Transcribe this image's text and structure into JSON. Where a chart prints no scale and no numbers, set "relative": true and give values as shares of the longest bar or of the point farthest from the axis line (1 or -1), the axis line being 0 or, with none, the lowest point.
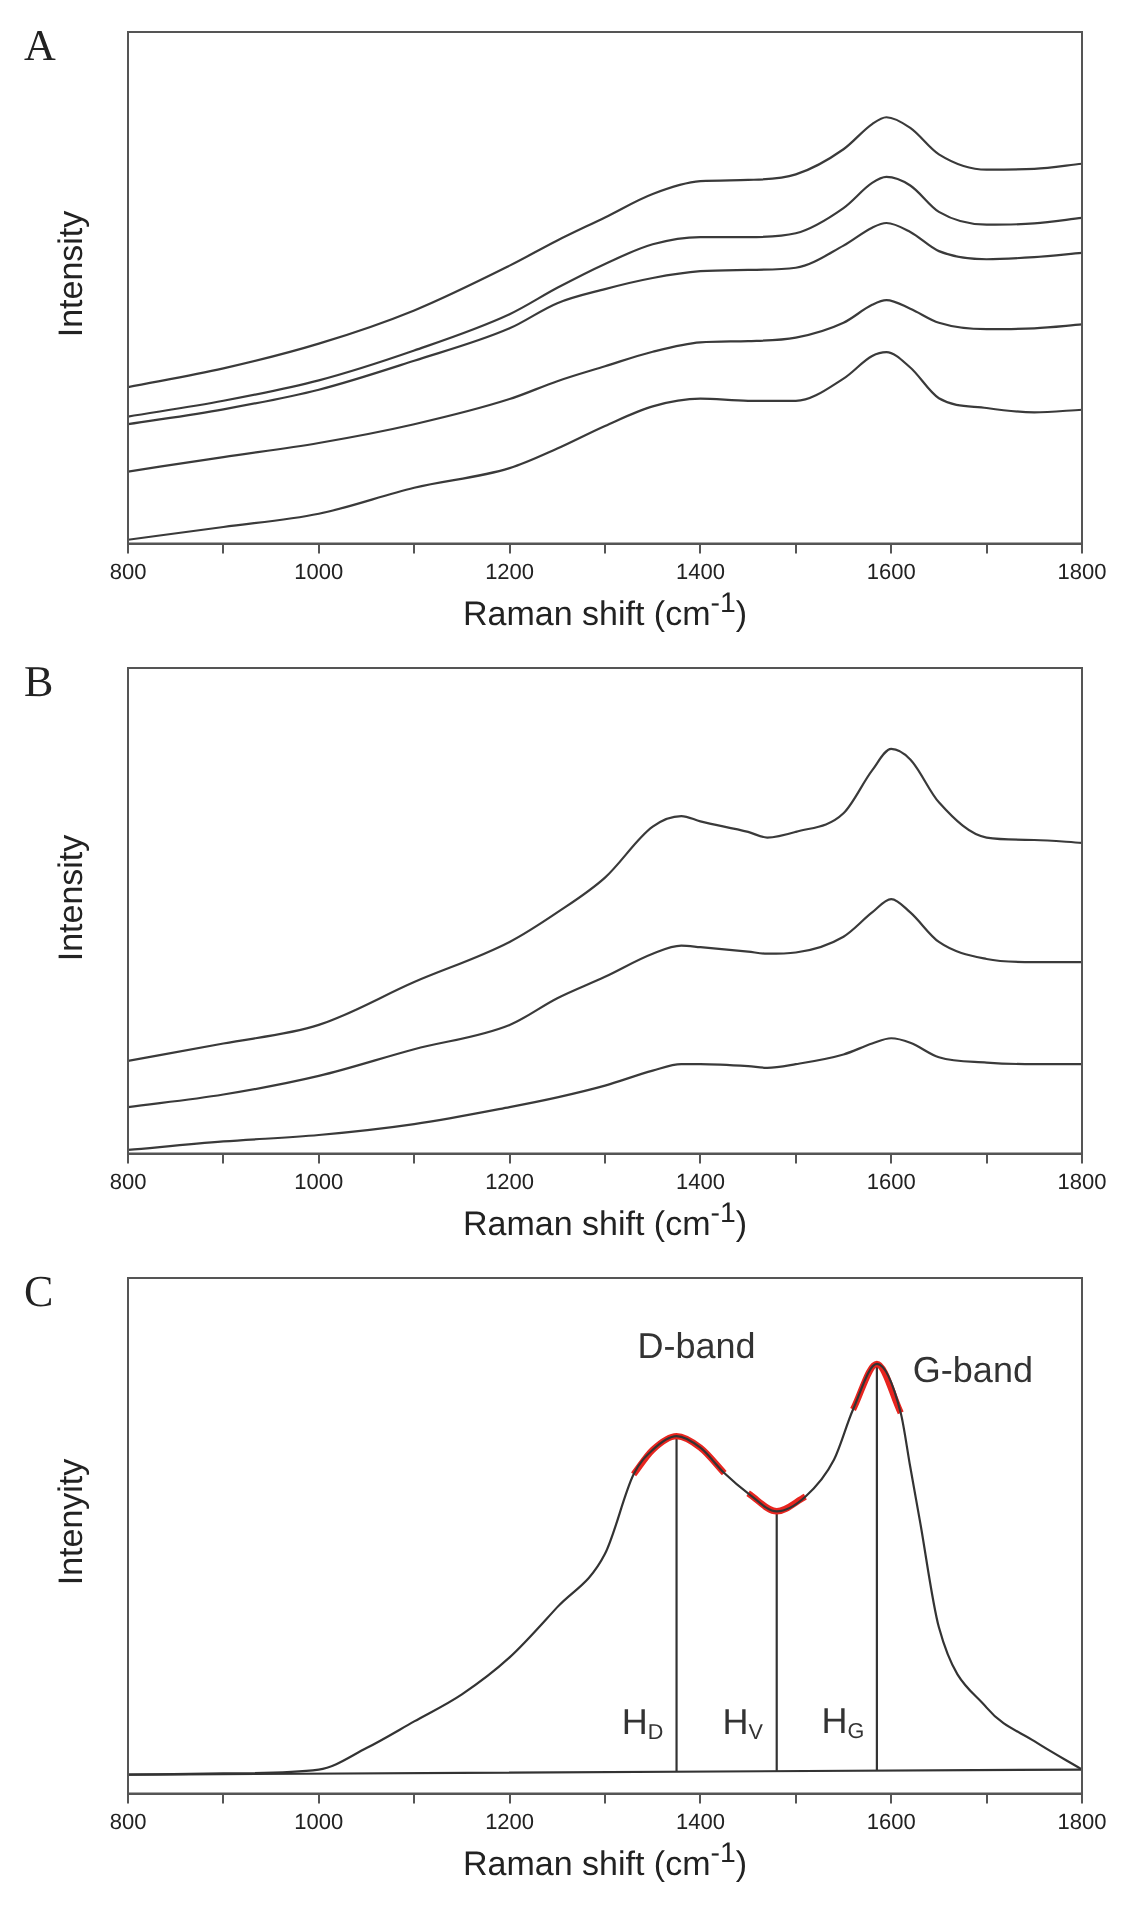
{
  "chart_data": [
    {
      "type": "line",
      "title": "A",
      "xlabel": "Raman shift (cm$^{-1}$)",
      "ylabel": "Intensity",
      "relative": true,
      "marker": "none",
      "xlim": [
        800,
        1800
      ],
      "xticks": [
        800,
        {
          "value": 900,
          "label": null
        },
        1000,
        {
          "value": 1100,
          "label": null
        },
        1200,
        {
          "value": 1300,
          "label": null
        },
        1400,
        {
          "value": 1500,
          "label": null
        },
        1600,
        {
          "value": 1700,
          "label": null
        },
        1800
      ],
      "x": [
        800,
        900,
        1000,
        1100,
        1200,
        1250,
        1300,
        1350,
        1400,
        1450,
        1500,
        1550,
        1580,
        1595,
        1620,
        1650,
        1700,
        1750,
        1800
      ],
      "series": [
        {
          "color": "#3a3a3a",
          "values": [
            0.367,
            0.411,
            0.469,
            0.547,
            0.652,
            0.711,
            0.765,
            0.82,
            0.85,
            0.853,
            0.866,
            0.925,
            0.984,
            1.0,
            0.975,
            0.913,
            0.877,
            0.879,
            0.891
          ]
        },
        {
          "color": "#3a3a3a",
          "values": [
            0.298,
            0.335,
            0.383,
            0.453,
            0.538,
            0.6,
            0.656,
            0.702,
            0.719,
            0.719,
            0.728,
            0.787,
            0.846,
            0.86,
            0.84,
            0.778,
            0.748,
            0.751,
            0.764
          ]
        },
        {
          "color": "#3a3a3a",
          "values": [
            0.28,
            0.315,
            0.361,
            0.429,
            0.505,
            0.564,
            0.597,
            0.623,
            0.639,
            0.642,
            0.647,
            0.699,
            0.741,
            0.752,
            0.731,
            0.686,
            0.667,
            0.672,
            0.682
          ]
        },
        {
          "color": "#3a3a3a",
          "values": [
            0.169,
            0.203,
            0.236,
            0.28,
            0.339,
            0.381,
            0.416,
            0.45,
            0.472,
            0.475,
            0.483,
            0.518,
            0.56,
            0.571,
            0.551,
            0.518,
            0.503,
            0.505,
            0.514
          ]
        },
        {
          "color": "#3a3a3a",
          "values": [
            0.009,
            0.039,
            0.07,
            0.131,
            0.177,
            0.223,
            0.276,
            0.322,
            0.34,
            0.335,
            0.335,
            0.387,
            0.44,
            0.449,
            0.413,
            0.341,
            0.318,
            0.308,
            0.314
          ]
        }
      ]
    },
    {
      "type": "line",
      "title": "B",
      "xlabel": "Raman shift (cm$^{-1}$)",
      "ylabel": "Intensity",
      "relative": true,
      "marker": "none",
      "xlim": [
        800,
        1800
      ],
      "xticks": [
        800,
        {
          "value": 900,
          "label": null
        },
        1000,
        {
          "value": 1100,
          "label": null
        },
        1200,
        {
          "value": 1300,
          "label": null
        },
        1400,
        {
          "value": 1500,
          "label": null
        },
        1600,
        {
          "value": 1700,
          "label": null
        },
        1800
      ],
      "x": [
        800,
        900,
        1000,
        1100,
        1200,
        1250,
        1300,
        1350,
        1380,
        1400,
        1450,
        1470,
        1500,
        1550,
        1580,
        1600,
        1620,
        1650,
        1700,
        1750,
        1800
      ],
      "series": [
        {
          "color": "#3a3a3a",
          "values": [
            0.229,
            0.272,
            0.318,
            0.424,
            0.523,
            0.596,
            0.682,
            0.808,
            0.834,
            0.821,
            0.795,
            0.781,
            0.795,
            0.841,
            0.947,
            1.0,
            0.974,
            0.868,
            0.781,
            0.775,
            0.768
          ]
        },
        {
          "color": "#3a3a3a",
          "values": [
            0.115,
            0.146,
            0.192,
            0.258,
            0.318,
            0.384,
            0.437,
            0.494,
            0.514,
            0.51,
            0.499,
            0.494,
            0.497,
            0.536,
            0.596,
            0.629,
            0.596,
            0.523,
            0.481,
            0.473,
            0.473
          ]
        },
        {
          "color": "#3a3a3a",
          "values": [
            0.009,
            0.03,
            0.046,
            0.073,
            0.115,
            0.139,
            0.168,
            0.205,
            0.221,
            0.221,
            0.216,
            0.212,
            0.221,
            0.245,
            0.272,
            0.285,
            0.274,
            0.238,
            0.225,
            0.221,
            0.221
          ]
        }
      ]
    },
    {
      "type": "line",
      "title": "C",
      "xlabel": "Raman shift (cm$^{-1}$)",
      "ylabel": "Intenyity",
      "relative": true,
      "marker": "none",
      "xlim": [
        800,
        1800
      ],
      "xticks": [
        800,
        {
          "value": 900,
          "label": null
        },
        1000,
        {
          "value": 1100,
          "label": null
        },
        1200,
        {
          "value": 1300,
          "label": null
        },
        1400,
        {
          "value": 1500,
          "label": null
        },
        1600,
        {
          "value": 1700,
          "label": null
        },
        1800
      ],
      "series": [
        {
          "color": "#333333",
          "x": [
            800,
            900,
            1000,
            1050,
            1100,
            1150,
            1200,
            1250,
            1300,
            1330,
            1350,
            1375,
            1400,
            1425,
            1450,
            1480,
            1510,
            1540,
            1560,
            1585,
            1610,
            1620,
            1630,
            1650,
            1700,
            1750,
            1800
          ],
          "values": [
            0.044,
            0.047,
            0.056,
            0.106,
            0.168,
            0.231,
            0.317,
            0.434,
            0.558,
            0.743,
            0.8,
            0.832,
            0.805,
            0.746,
            0.699,
            0.657,
            0.691,
            0.777,
            0.894,
            1.0,
            0.886,
            0.76,
            0.636,
            0.387,
            0.2,
            0.122,
            0.056
          ]
        },
        {
          "color": "#e8251f",
          "x": [
            1330,
            1350,
            1375,
            1400,
            1425
          ],
          "values": [
            0.743,
            0.8,
            0.832,
            0.805,
            0.746
          ]
        },
        {
          "color": "#e8251f",
          "x": [
            1450,
            1480,
            1510
          ],
          "values": [
            0.699,
            0.657,
            0.691
          ]
        },
        {
          "color": "#e8251f",
          "x": [
            1560,
            1585,
            1610
          ],
          "values": [
            0.894,
            1.0,
            0.886
          ]
        },
        {
          "color": "#333333",
          "x": [
            800,
            1800
          ],
          "values": [
            0.044,
            0.056
          ]
        },
        {
          "color": "#333333",
          "x": [
            1375,
            1375
          ],
          "values": [
            0.05,
            0.832
          ]
        },
        {
          "color": "#333333",
          "x": [
            1480,
            1480
          ],
          "values": [
            0.051,
            0.657
          ]
        },
        {
          "color": "#333333",
          "x": [
            1585,
            1585
          ],
          "values": [
            0.053,
            1.0
          ]
        }
      ],
      "annotations": [
        "D-band",
        "G-band",
        "H$_{D}$",
        "H$_{V}$",
        "H$_{G}$"
      ]
    }
  ]
}
